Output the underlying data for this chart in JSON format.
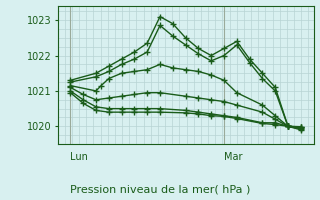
{
  "bg_color": "#d8f0f0",
  "line_color": "#1a5c1a",
  "grid_color": "#b8d4d4",
  "vline_color": "#9aaa9a",
  "title": "Pression niveau de la mer( hPa )",
  "xlabel_lun": "Lun",
  "xlabel_mar": "Mar",
  "ylim": [
    1019.5,
    1023.4
  ],
  "xlim": [
    0,
    10
  ],
  "yticks": [
    1020,
    1021,
    1022,
    1023
  ],
  "lun_x": 0.5,
  "mar_x": 6.5,
  "series": [
    [
      0.5,
      1021.3,
      1.5,
      1021.5,
      2.0,
      1021.7,
      2.5,
      1021.9,
      3.0,
      1022.1,
      3.5,
      1022.35,
      4.0,
      1023.1,
      4.5,
      1022.9,
      5.0,
      1022.5,
      5.5,
      1022.2,
      6.0,
      1022.0,
      6.5,
      1022.2,
      7.0,
      1022.4,
      7.5,
      1021.9,
      8.0,
      1021.5,
      8.5,
      1021.1,
      9.0,
      1020.0,
      9.5,
      1019.9
    ],
    [
      0.5,
      1021.25,
      1.5,
      1021.4,
      2.0,
      1021.55,
      2.5,
      1021.75,
      3.0,
      1021.9,
      3.5,
      1022.1,
      4.0,
      1022.85,
      4.5,
      1022.55,
      5.0,
      1022.3,
      5.5,
      1022.05,
      6.0,
      1021.85,
      6.5,
      1022.0,
      7.0,
      1022.3,
      7.5,
      1021.8,
      8.0,
      1021.35,
      8.5,
      1021.0,
      9.0,
      1020.0,
      9.5,
      1019.93
    ],
    [
      0.5,
      1021.15,
      1.5,
      1021.0,
      1.7,
      1021.15,
      2.0,
      1021.35,
      2.5,
      1021.5,
      3.0,
      1021.55,
      3.5,
      1021.6,
      4.0,
      1021.75,
      4.5,
      1021.65,
      5.0,
      1021.6,
      5.5,
      1021.55,
      6.0,
      1021.45,
      6.5,
      1021.3,
      7.0,
      1020.95,
      8.0,
      1020.6,
      8.5,
      1020.3,
      9.0,
      1020.0,
      9.5,
      1019.96
    ],
    [
      0.5,
      1021.1,
      1.0,
      1020.9,
      1.5,
      1020.75,
      2.0,
      1020.8,
      2.5,
      1020.85,
      3.0,
      1020.9,
      3.5,
      1020.95,
      4.0,
      1020.95,
      5.0,
      1020.85,
      5.5,
      1020.8,
      6.0,
      1020.75,
      6.5,
      1020.7,
      7.0,
      1020.6,
      8.0,
      1020.4,
      8.5,
      1020.2,
      9.0,
      1020.0,
      9.5,
      1019.97
    ],
    [
      0.5,
      1021.0,
      1.0,
      1020.75,
      1.5,
      1020.55,
      2.0,
      1020.5,
      2.5,
      1020.5,
      3.0,
      1020.5,
      3.5,
      1020.5,
      4.0,
      1020.5,
      5.0,
      1020.45,
      5.5,
      1020.4,
      6.0,
      1020.35,
      6.5,
      1020.3,
      7.0,
      1020.25,
      8.0,
      1020.1,
      8.5,
      1020.1,
      9.0,
      1020.0,
      9.5,
      1019.98
    ],
    [
      0.5,
      1020.95,
      1.0,
      1020.65,
      1.5,
      1020.45,
      2.0,
      1020.4,
      2.5,
      1020.4,
      3.0,
      1020.4,
      3.5,
      1020.4,
      4.0,
      1020.4,
      5.0,
      1020.38,
      5.5,
      1020.35,
      6.0,
      1020.3,
      6.5,
      1020.28,
      7.0,
      1020.22,
      8.0,
      1020.08,
      8.5,
      1020.05,
      9.0,
      1020.0,
      9.5,
      1019.99
    ]
  ]
}
